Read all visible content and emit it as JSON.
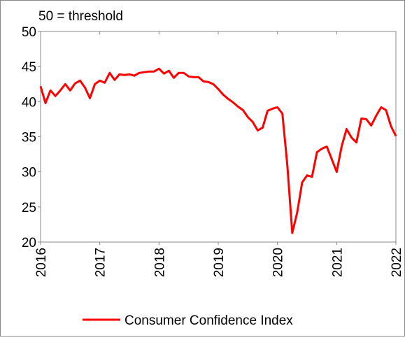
{
  "chart_data": {
    "type": "line",
    "annotation": "50 = threshold",
    "x": [
      2016,
      2016.083,
      2016.167,
      2016.25,
      2016.333,
      2016.417,
      2016.5,
      2016.583,
      2016.667,
      2016.75,
      2016.833,
      2016.917,
      2017,
      2017.083,
      2017.167,
      2017.25,
      2017.333,
      2017.417,
      2017.5,
      2017.583,
      2017.667,
      2017.75,
      2017.833,
      2017.917,
      2018,
      2018.083,
      2018.167,
      2018.25,
      2018.333,
      2018.417,
      2018.5,
      2018.583,
      2018.667,
      2018.75,
      2018.833,
      2018.917,
      2019,
      2019.083,
      2019.167,
      2019.25,
      2019.333,
      2019.417,
      2019.5,
      2019.583,
      2019.667,
      2019.75,
      2019.833,
      2019.917,
      2020,
      2020.083,
      2020.167,
      2020.25,
      2020.333,
      2020.417,
      2020.5,
      2020.583,
      2020.667,
      2020.75,
      2020.833,
      2020.917,
      2021,
      2021.083,
      2021.167,
      2021.25,
      2021.333,
      2021.417,
      2021.5,
      2021.583,
      2021.667,
      2021.75,
      2021.833,
      2021.917,
      2022
    ],
    "series": [
      {
        "name": "Consumer Confidence Index",
        "color": "#ff0000",
        "values": [
          42.2,
          39.8,
          41.6,
          40.8,
          41.6,
          42.5,
          41.6,
          42.6,
          43.0,
          42.0,
          40.5,
          42.5,
          43.0,
          42.7,
          44.1,
          43.1,
          43.9,
          43.8,
          43.9,
          43.7,
          44.1,
          44.2,
          44.3,
          44.3,
          44.7,
          44.0,
          44.4,
          43.4,
          44.1,
          44.1,
          43.6,
          43.5,
          43.5,
          42.9,
          42.8,
          42.5,
          41.8,
          41.0,
          40.4,
          39.9,
          39.3,
          38.8,
          37.8,
          37.1,
          35.9,
          36.3,
          38.7,
          39.0,
          39.2,
          38.3,
          30.9,
          21.3,
          24.2,
          28.5,
          29.5,
          29.3,
          32.8,
          33.3,
          33.6,
          31.8,
          30.0,
          33.6,
          36.1,
          34.9,
          34.2,
          37.6,
          37.5,
          36.6,
          38.0,
          39.2,
          38.8,
          36.5,
          35.1
        ]
      }
    ],
    "xlim": [
      2016,
      2022
    ],
    "xticks": [
      2016,
      2017,
      2018,
      2019,
      2020,
      2021,
      2022
    ],
    "ylim": [
      20,
      50
    ],
    "yticks": [
      20,
      25,
      30,
      35,
      40,
      45,
      50
    ],
    "legend": "bottom"
  }
}
